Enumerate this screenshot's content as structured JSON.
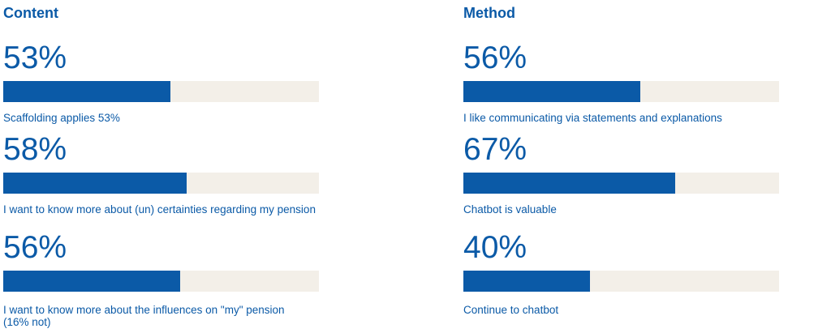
{
  "chart_data": [
    {
      "type": "bar",
      "title": "Content",
      "items": [
        {
          "percent_label": "53%",
          "value": 53,
          "caption": "Scaffolding applies 53%"
        },
        {
          "percent_label": "58%",
          "value": 58,
          "caption": "I want to know more about (un) certainties regarding my pension"
        },
        {
          "percent_label": "56%",
          "value": 56,
          "caption": "I want to know more about the influences on \"my\" pension\n(16% not)"
        }
      ]
    },
    {
      "type": "bar",
      "title": "Method",
      "items": [
        {
          "percent_label": "56%",
          "value": 56,
          "caption": "I like communicating via statements and explanations"
        },
        {
          "percent_label": "67%",
          "value": 67,
          "caption": "Chatbot is valuable"
        },
        {
          "percent_label": "40%",
          "value": 40,
          "caption": "Continue to chatbot"
        }
      ]
    }
  ],
  "colors": {
    "fill": "#0b5aa7",
    "track": "#f3efe8",
    "text": "#0b5aa7"
  }
}
